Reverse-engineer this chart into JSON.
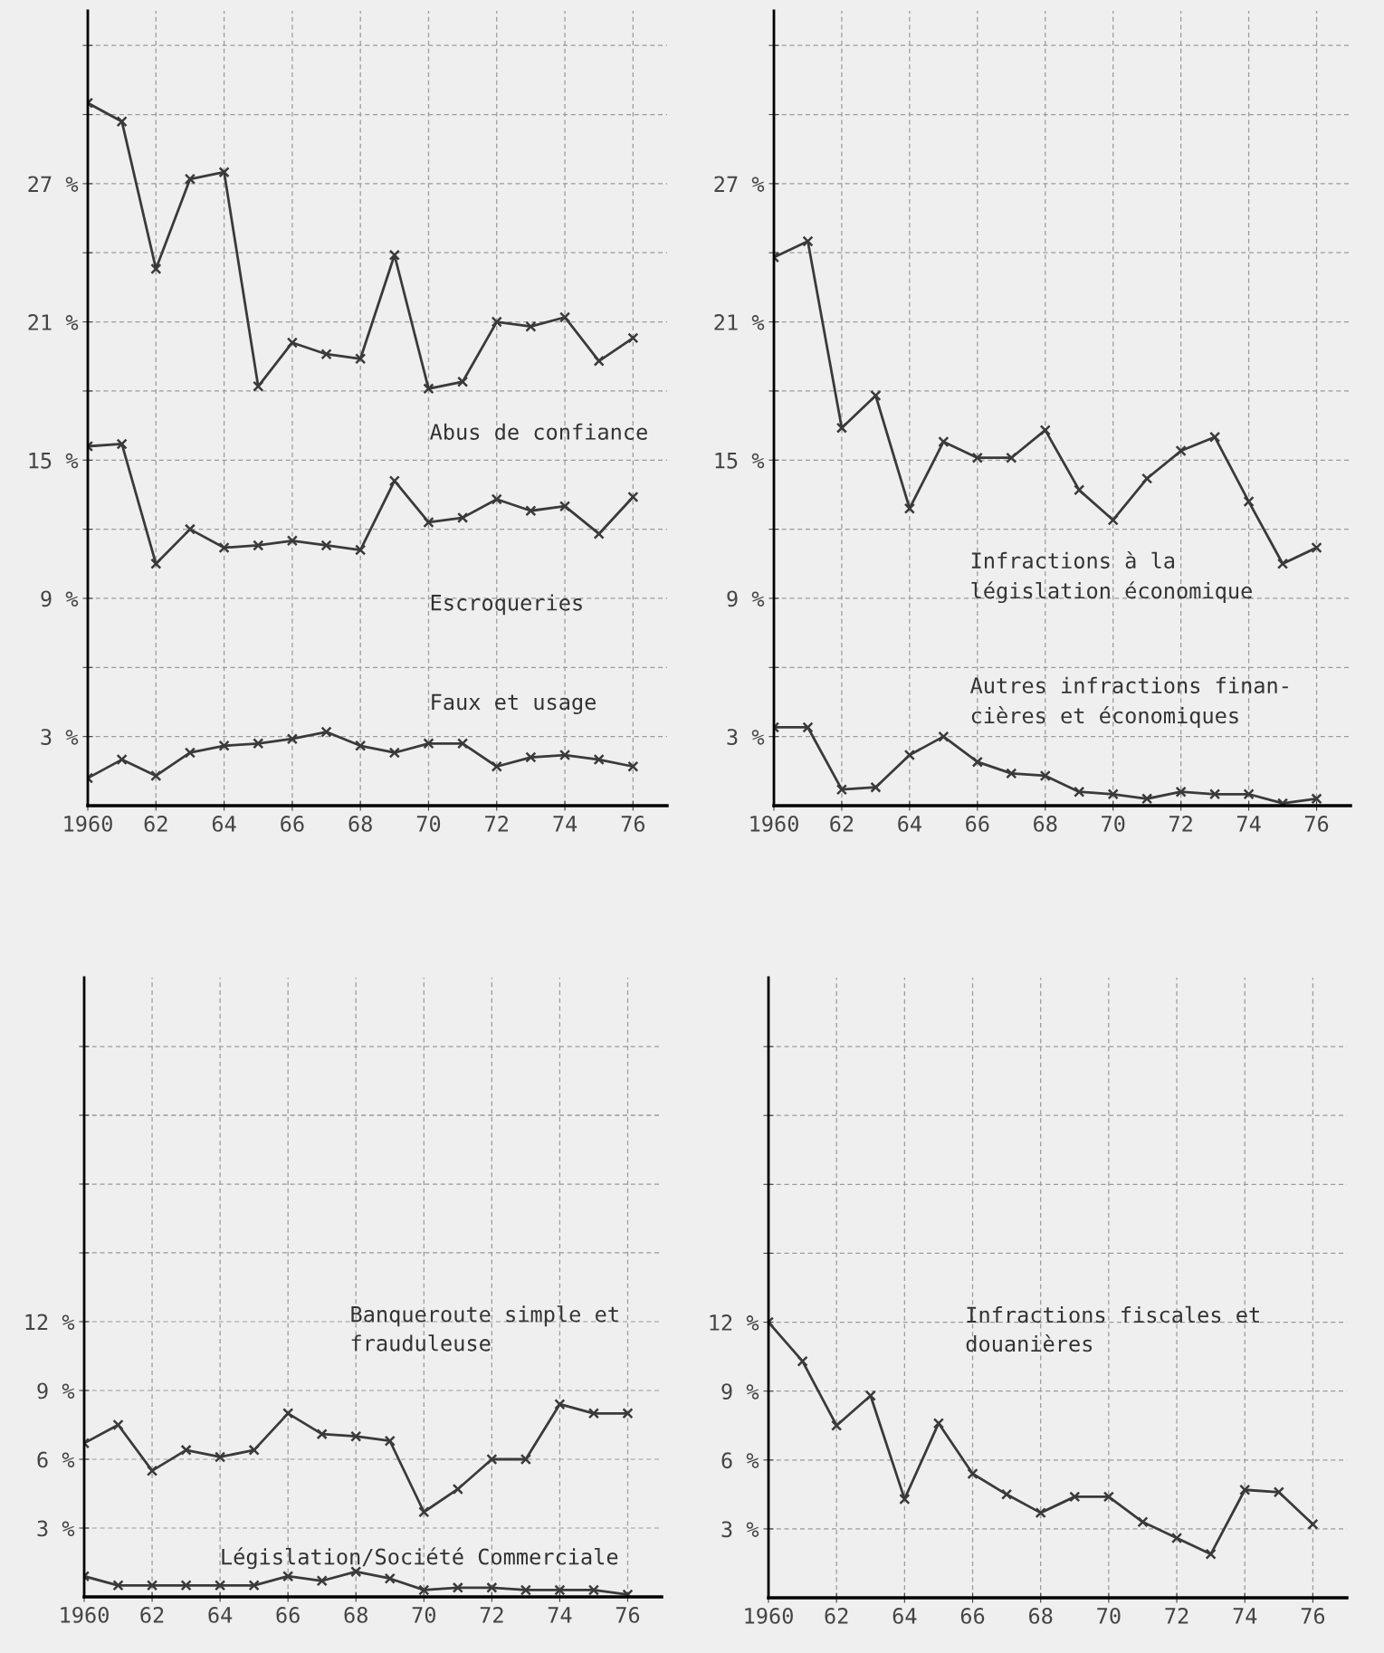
{
  "chart_data": [
    {
      "type": "line",
      "x": [
        1960,
        1961,
        1962,
        1963,
        1964,
        1965,
        1966,
        1967,
        1968,
        1969,
        1970,
        1971,
        1972,
        1973,
        1974,
        1975,
        1976
      ],
      "xlim": [
        1960,
        1977
      ],
      "xticks": [
        1960,
        {
          "value": 1962,
          "label": "62"
        },
        {
          "value": 1964,
          "label": "64"
        },
        {
          "value": 1966,
          "label": "66"
        },
        {
          "value": 1968,
          "label": "68"
        },
        {
          "value": 1970,
          "label": "70"
        },
        {
          "value": 1972,
          "label": "72"
        },
        {
          "value": 1974,
          "label": "74"
        },
        {
          "value": 1976,
          "label": "76"
        }
      ],
      "ylim": [
        0,
        34.5
      ],
      "yticks": [
        {
          "value": 3,
          "label": "3 %"
        },
        {
          "value": 6,
          "label": null
        },
        {
          "value": 9,
          "label": "9 %"
        },
        {
          "value": 12,
          "label": null
        },
        {
          "value": 15,
          "label": "15 %"
        },
        {
          "value": 18,
          "label": null
        },
        {
          "value": 21,
          "label": "21 %"
        },
        {
          "value": 24,
          "label": null
        },
        {
          "value": 27,
          "label": "27 %"
        },
        {
          "value": 30,
          "label": null
        },
        {
          "value": 33,
          "label": null
        }
      ],
      "grid": true,
      "marker": "cross",
      "line_style": "solid",
      "series": [
        {
          "name": "Abus de confiance",
          "color": "#3a3a3a",
          "values": [
            30.5,
            29.7,
            23.3,
            27.2,
            27.5,
            18.2,
            20.1,
            19.6,
            19.4,
            23.9,
            18.1,
            18.4,
            21.0,
            20.8,
            21.2,
            19.3,
            20.3
          ]
        },
        {
          "name": "Escroqueries",
          "color": "#3a3a3a",
          "values": [
            15.6,
            15.7,
            10.5,
            12.0,
            11.2,
            11.3,
            11.5,
            11.3,
            11.1,
            14.1,
            12.3,
            12.5,
            13.3,
            12.8,
            13.0,
            11.8,
            13.4
          ]
        },
        {
          "name": "Faux et usage",
          "color": "#3a3a3a",
          "values": [
            1.2,
            2.0,
            1.3,
            2.3,
            2.6,
            2.7,
            2.9,
            3.2,
            2.6,
            2.3,
            2.7,
            2.7,
            1.7,
            2.1,
            2.2,
            2.0,
            1.7
          ]
        }
      ]
    },
    {
      "type": "line",
      "x": [
        1960,
        1961,
        1962,
        1963,
        1964,
        1965,
        1966,
        1967,
        1968,
        1969,
        1970,
        1971,
        1972,
        1973,
        1974,
        1975,
        1976
      ],
      "xlim": [
        1960,
        1977
      ],
      "xticks": [
        1960,
        {
          "value": 1962,
          "label": "62"
        },
        {
          "value": 1964,
          "label": "64"
        },
        {
          "value": 1966,
          "label": "66"
        },
        {
          "value": 1968,
          "label": "68"
        },
        {
          "value": 1970,
          "label": "70"
        },
        {
          "value": 1972,
          "label": "72"
        },
        {
          "value": 1974,
          "label": "74"
        },
        {
          "value": 1976,
          "label": "76"
        }
      ],
      "ylim": [
        0,
        34.5
      ],
      "yticks": [
        {
          "value": 3,
          "label": "3 %"
        },
        {
          "value": 6,
          "label": null
        },
        {
          "value": 9,
          "label": "9 %"
        },
        {
          "value": 12,
          "label": null
        },
        {
          "value": 15,
          "label": "15 %"
        },
        {
          "value": 18,
          "label": null
        },
        {
          "value": 21,
          "label": "21 %"
        },
        {
          "value": 24,
          "label": null
        },
        {
          "value": 27,
          "label": "27 %"
        },
        {
          "value": 30,
          "label": null
        },
        {
          "value": 33,
          "label": null
        }
      ],
      "grid": true,
      "marker": "cross",
      "line_style": "solid",
      "series": [
        {
          "name": "Infractions à la\nlégislation économique",
          "color": "#3a3a3a",
          "values": [
            23.8,
            24.5,
            16.4,
            17.8,
            12.9,
            15.8,
            15.1,
            15.1,
            16.3,
            13.7,
            12.4,
            14.2,
            15.4,
            16.0,
            13.2,
            10.5,
            11.2
          ]
        },
        {
          "name": "Autres infractions finan-\ncières et économiques",
          "color": "#3a3a3a",
          "values": [
            3.4,
            3.4,
            0.7,
            0.8,
            2.2,
            3.0,
            1.9,
            1.4,
            1.3,
            0.6,
            0.5,
            0.3,
            0.6,
            0.5,
            0.5,
            0.1,
            0.3
          ]
        }
      ]
    },
    {
      "type": "line",
      "x": [
        1960,
        1961,
        1962,
        1963,
        1964,
        1965,
        1966,
        1967,
        1968,
        1969,
        1970,
        1971,
        1972,
        1973,
        1974,
        1975,
        1976
      ],
      "xlim": [
        1960,
        1977
      ],
      "xticks": [
        1960,
        {
          "value": 1962,
          "label": "62"
        },
        {
          "value": 1964,
          "label": "64"
        },
        {
          "value": 1966,
          "label": "66"
        },
        {
          "value": 1968,
          "label": "68"
        },
        {
          "value": 1970,
          "label": "70"
        },
        {
          "value": 1972,
          "label": "72"
        },
        {
          "value": 1974,
          "label": "74"
        },
        {
          "value": 1976,
          "label": "76"
        }
      ],
      "ylim": [
        0,
        27
      ],
      "yticks": [
        {
          "value": 3,
          "label": "3 %"
        },
        {
          "value": 6,
          "label": "6 %"
        },
        {
          "value": 9,
          "label": "9 %"
        },
        {
          "value": 12,
          "label": "12 %"
        },
        {
          "value": 15,
          "label": null
        },
        {
          "value": 18,
          "label": null
        },
        {
          "value": 21,
          "label": null
        },
        {
          "value": 24,
          "label": null
        }
      ],
      "grid": true,
      "marker": "cross",
      "line_style": "solid",
      "series": [
        {
          "name": "Banqueroute simple et\nfrauduleuse",
          "color": "#3a3a3a",
          "values": [
            6.7,
            7.5,
            5.5,
            6.4,
            6.1,
            6.4,
            8.0,
            7.1,
            7.0,
            6.8,
            3.7,
            4.7,
            6.0,
            6.0,
            8.4,
            8.0,
            8.0
          ]
        },
        {
          "name": "Législation/Société Commerciale",
          "color": "#3a3a3a",
          "values": [
            0.9,
            0.5,
            0.5,
            0.5,
            0.5,
            0.5,
            0.9,
            0.7,
            1.1,
            0.8,
            0.3,
            0.4,
            0.4,
            0.3,
            0.3,
            0.3,
            0.1
          ]
        }
      ]
    },
    {
      "type": "line",
      "x": [
        1960,
        1961,
        1962,
        1963,
        1964,
        1965,
        1966,
        1967,
        1968,
        1969,
        1970,
        1971,
        1972,
        1973,
        1974,
        1975,
        1976
      ],
      "xlim": [
        1960,
        1977
      ],
      "xticks": [
        1960,
        {
          "value": 1962,
          "label": "62"
        },
        {
          "value": 1964,
          "label": "64"
        },
        {
          "value": 1966,
          "label": "66"
        },
        {
          "value": 1968,
          "label": "68"
        },
        {
          "value": 1970,
          "label": "70"
        },
        {
          "value": 1972,
          "label": "72"
        },
        {
          "value": 1974,
          "label": "74"
        },
        {
          "value": 1976,
          "label": "76"
        }
      ],
      "ylim": [
        0,
        27
      ],
      "yticks": [
        {
          "value": 3,
          "label": "3 %"
        },
        {
          "value": 6,
          "label": "6 %"
        },
        {
          "value": 9,
          "label": "9 %"
        },
        {
          "value": 12,
          "label": "12 %"
        },
        {
          "value": 15,
          "label": null
        },
        {
          "value": 18,
          "label": null
        },
        {
          "value": 21,
          "label": null
        },
        {
          "value": 24,
          "label": null
        }
      ],
      "grid": true,
      "marker": "cross",
      "line_style": "solid",
      "series": [
        {
          "name": "Infractions fiscales et\ndouanières",
          "color": "#3a3a3a",
          "values": [
            12.0,
            10.3,
            7.5,
            8.8,
            4.3,
            7.6,
            5.4,
            4.5,
            3.7,
            4.4,
            4.4,
            3.3,
            2.6,
            1.9,
            4.7,
            4.6,
            3.2
          ]
        }
      ]
    }
  ]
}
